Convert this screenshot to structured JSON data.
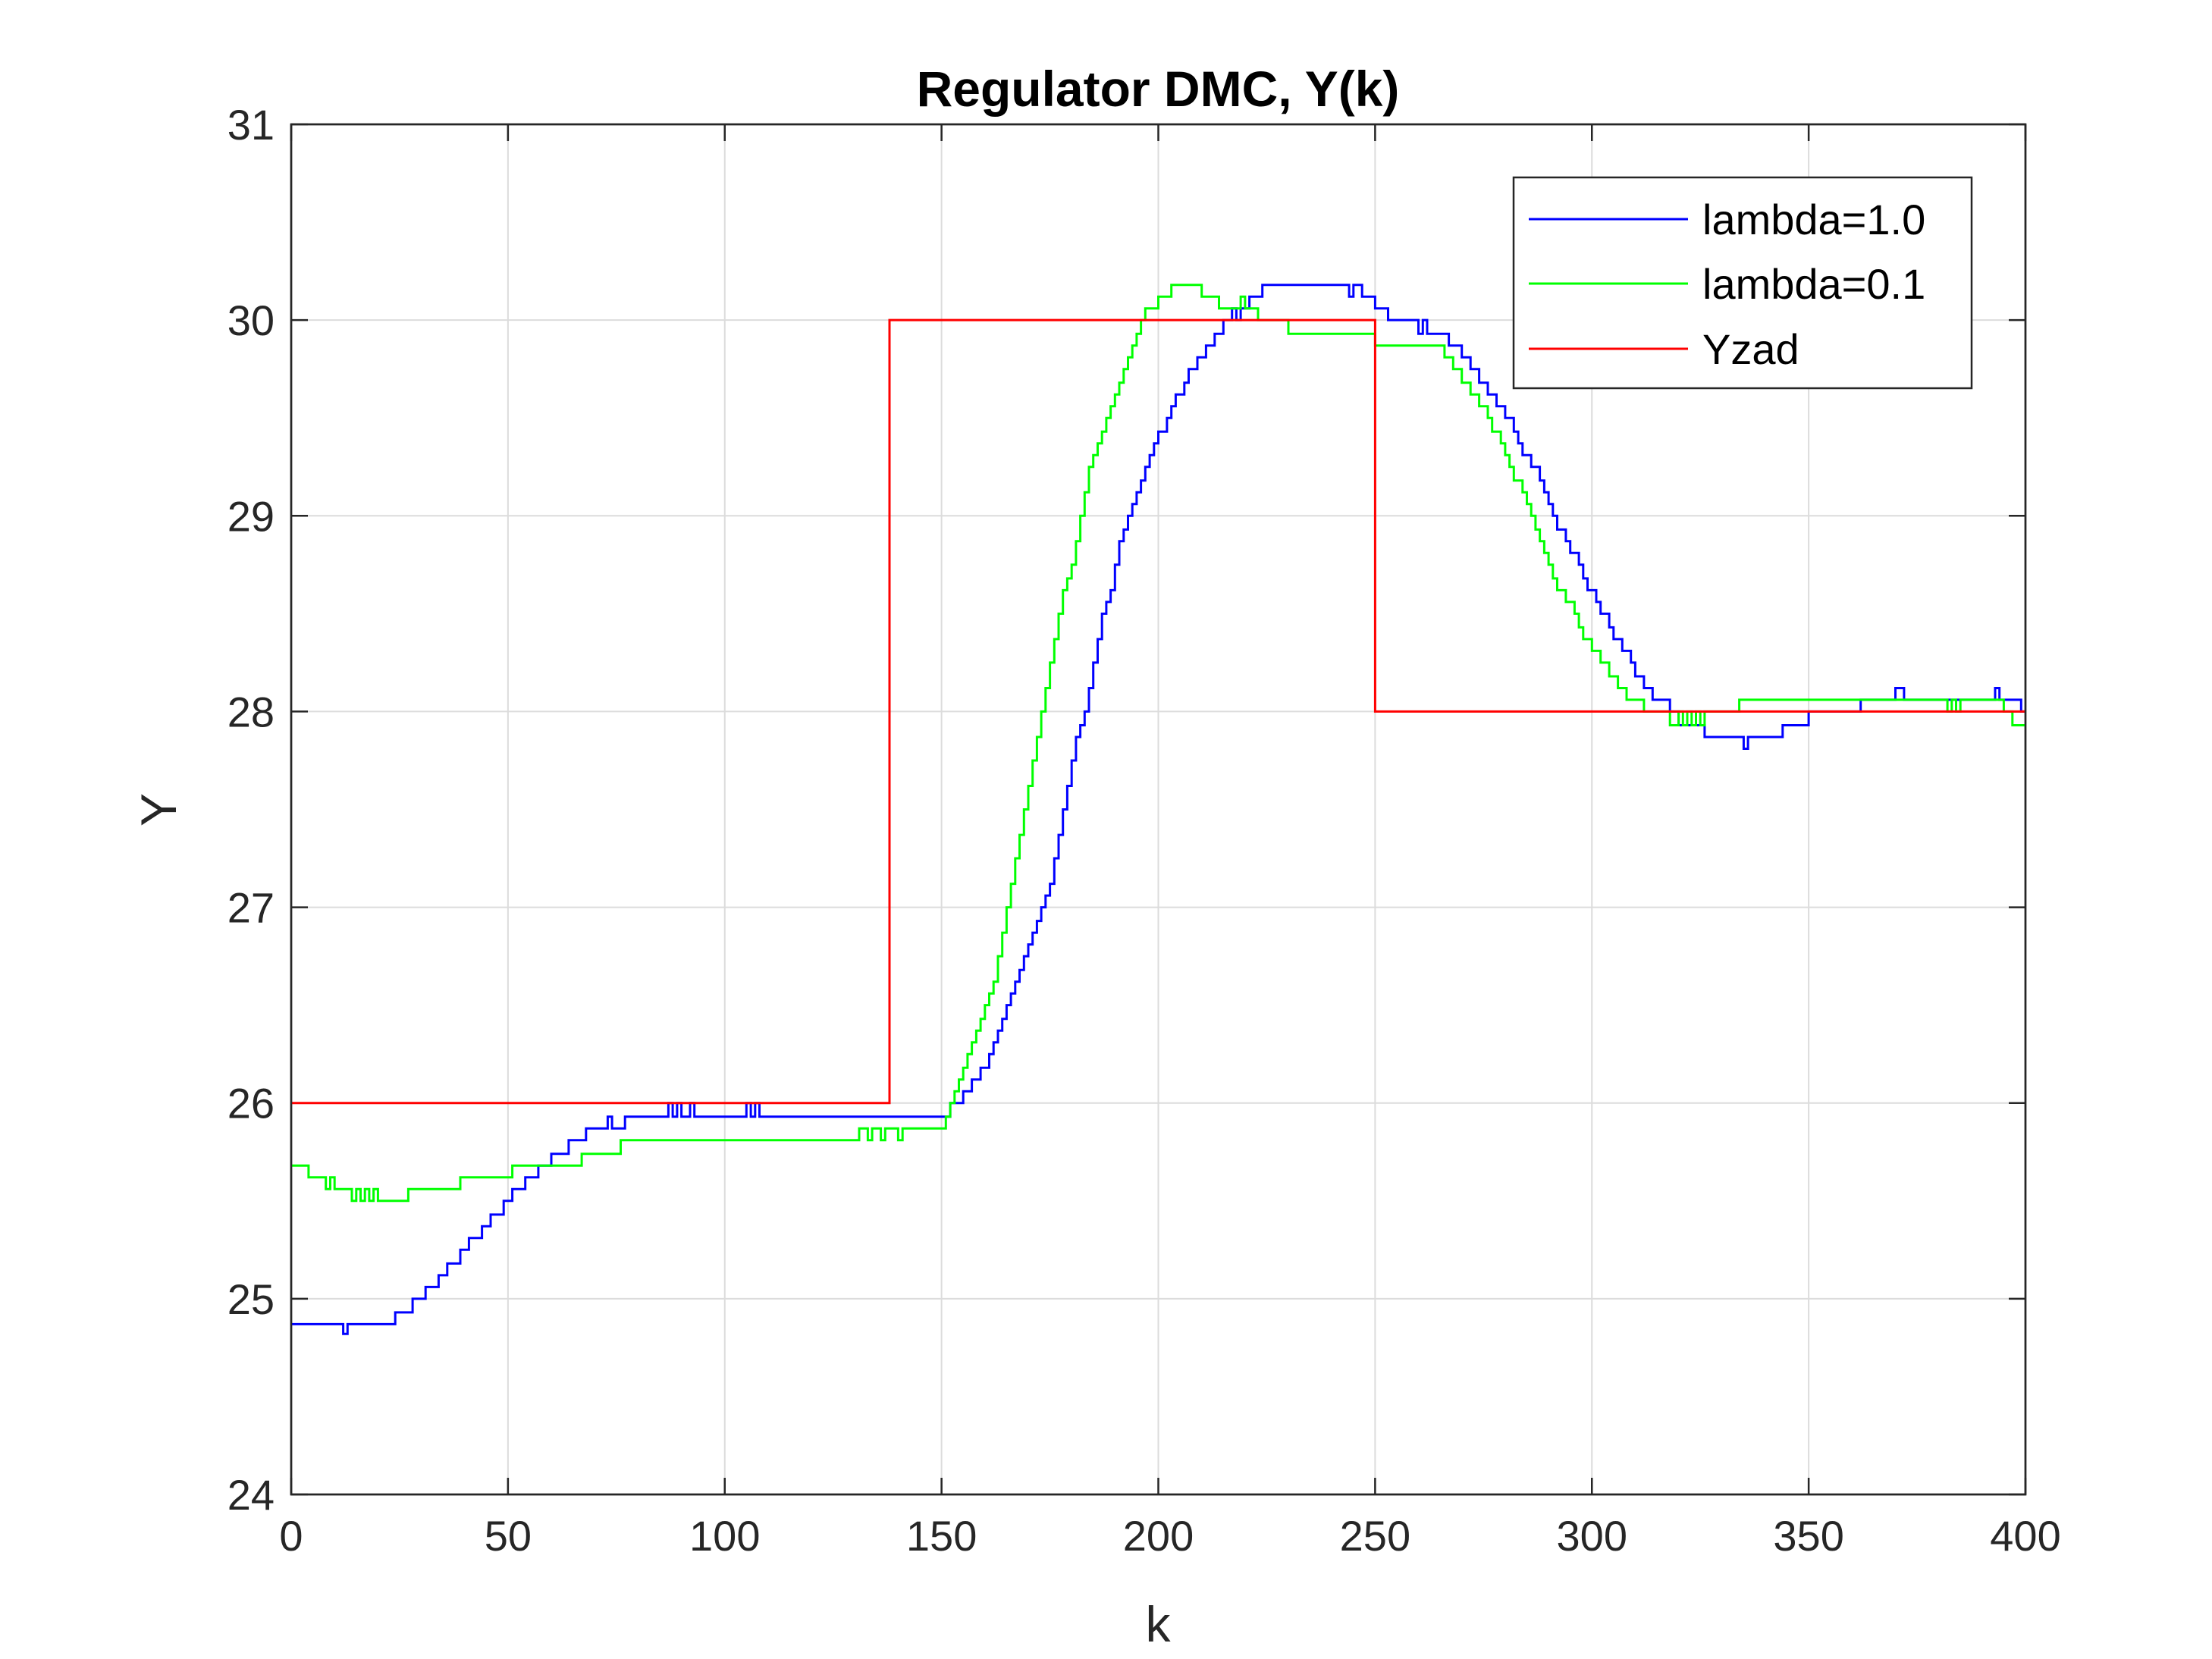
{
  "chart_data": {
    "type": "line",
    "title": "Regulator DMC, Y(k)",
    "xlabel": "k",
    "ylabel": "Y",
    "xlim": [
      0,
      400
    ],
    "ylim": [
      24,
      31
    ],
    "xticks": [
      0,
      50,
      100,
      150,
      200,
      250,
      300,
      350,
      400
    ],
    "yticks": [
      24,
      25,
      26,
      27,
      28,
      29,
      30,
      31
    ],
    "grid": true,
    "legend": "top-right",
    "series": [
      {
        "name": "lambda=1.0",
        "color": "#0000ff",
        "step": true,
        "points": [
          [
            0,
            24.87
          ],
          [
            12,
            24.82
          ],
          [
            13,
            24.87
          ],
          [
            24,
            24.93
          ],
          [
            28,
            25.0
          ],
          [
            31,
            25.06
          ],
          [
            34,
            25.12
          ],
          [
            36,
            25.18
          ],
          [
            39,
            25.25
          ],
          [
            41,
            25.31
          ],
          [
            44,
            25.37
          ],
          [
            46,
            25.43
          ],
          [
            49,
            25.5
          ],
          [
            51,
            25.56
          ],
          [
            54,
            25.62
          ],
          [
            57,
            25.68
          ],
          [
            60,
            25.74
          ],
          [
            64,
            25.81
          ],
          [
            68,
            25.87
          ],
          [
            73,
            25.93
          ],
          [
            74,
            25.87
          ],
          [
            77,
            25.93
          ],
          [
            87,
            26.0
          ],
          [
            88,
            25.93
          ],
          [
            89,
            26.0
          ],
          [
            90,
            25.93
          ],
          [
            92,
            26.0
          ],
          [
            93,
            25.93
          ],
          [
            105,
            26.0
          ],
          [
            106,
            25.93
          ],
          [
            107,
            26.0
          ],
          [
            108,
            25.93
          ],
          [
            152,
            26.0
          ],
          [
            155,
            26.06
          ],
          [
            157,
            26.12
          ],
          [
            159,
            26.18
          ],
          [
            161,
            26.25
          ],
          [
            162,
            26.31
          ],
          [
            163,
            26.37
          ],
          [
            164,
            26.43
          ],
          [
            165,
            26.5
          ],
          [
            166,
            26.56
          ],
          [
            167,
            26.62
          ],
          [
            168,
            26.68
          ],
          [
            169,
            26.75
          ],
          [
            170,
            26.81
          ],
          [
            171,
            26.87
          ],
          [
            172,
            26.93
          ],
          [
            173,
            27.0
          ],
          [
            174,
            27.06
          ],
          [
            175,
            27.12
          ],
          [
            176,
            27.25
          ],
          [
            177,
            27.37
          ],
          [
            178,
            27.5
          ],
          [
            179,
            27.62
          ],
          [
            180,
            27.75
          ],
          [
            181,
            27.87
          ],
          [
            182,
            27.93
          ],
          [
            183,
            28.0
          ],
          [
            184,
            28.12
          ],
          [
            185,
            28.25
          ],
          [
            186,
            28.37
          ],
          [
            187,
            28.5
          ],
          [
            188,
            28.56
          ],
          [
            189,
            28.62
          ],
          [
            190,
            28.75
          ],
          [
            191,
            28.87
          ],
          [
            192,
            28.93
          ],
          [
            193,
            29.0
          ],
          [
            194,
            29.06
          ],
          [
            195,
            29.12
          ],
          [
            196,
            29.18
          ],
          [
            197,
            29.25
          ],
          [
            198,
            29.31
          ],
          [
            199,
            29.37
          ],
          [
            200,
            29.43
          ],
          [
            202,
            29.5
          ],
          [
            203,
            29.56
          ],
          [
            204,
            29.62
          ],
          [
            206,
            29.68
          ],
          [
            207,
            29.75
          ],
          [
            209,
            29.81
          ],
          [
            211,
            29.87
          ],
          [
            213,
            29.93
          ],
          [
            215,
            30.0
          ],
          [
            217,
            30.06
          ],
          [
            218,
            30.0
          ],
          [
            219,
            30.06
          ],
          [
            221,
            30.12
          ],
          [
            224,
            30.18
          ],
          [
            244,
            30.12
          ],
          [
            245,
            30.18
          ],
          [
            247,
            30.12
          ],
          [
            250,
            30.06
          ],
          [
            253,
            30.0
          ],
          [
            260,
            29.93
          ],
          [
            261,
            30.0
          ],
          [
            262,
            29.93
          ],
          [
            267,
            29.87
          ],
          [
            270,
            29.81
          ],
          [
            272,
            29.75
          ],
          [
            274,
            29.68
          ],
          [
            276,
            29.62
          ],
          [
            278,
            29.56
          ],
          [
            280,
            29.5
          ],
          [
            282,
            29.43
          ],
          [
            283,
            29.37
          ],
          [
            284,
            29.31
          ],
          [
            286,
            29.25
          ],
          [
            288,
            29.18
          ],
          [
            289,
            29.12
          ],
          [
            290,
            29.06
          ],
          [
            291,
            29.0
          ],
          [
            292,
            28.93
          ],
          [
            294,
            28.87
          ],
          [
            295,
            28.81
          ],
          [
            297,
            28.75
          ],
          [
            298,
            28.68
          ],
          [
            299,
            28.62
          ],
          [
            301,
            28.56
          ],
          [
            302,
            28.5
          ],
          [
            304,
            28.43
          ],
          [
            305,
            28.37
          ],
          [
            307,
            28.31
          ],
          [
            309,
            28.25
          ],
          [
            310,
            28.18
          ],
          [
            312,
            28.12
          ],
          [
            314,
            28.06
          ],
          [
            318,
            28.0
          ],
          [
            320,
            27.93
          ],
          [
            326,
            27.87
          ],
          [
            335,
            27.81
          ],
          [
            336,
            27.87
          ],
          [
            344,
            27.93
          ],
          [
            350,
            28.0
          ],
          [
            362,
            28.06
          ],
          [
            370,
            28.12
          ],
          [
            372,
            28.06
          ],
          [
            386,
            28.06
          ],
          [
            393,
            28.12
          ],
          [
            394,
            28.06
          ],
          [
            399,
            28.0
          ]
        ]
      },
      {
        "name": "lambda=0.1",
        "color": "#00ff00",
        "step": true,
        "points": [
          [
            0,
            25.68
          ],
          [
            4,
            25.62
          ],
          [
            8,
            25.56
          ],
          [
            9,
            25.62
          ],
          [
            10,
            25.56
          ],
          [
            14,
            25.5
          ],
          [
            15,
            25.56
          ],
          [
            16,
            25.5
          ],
          [
            17,
            25.56
          ],
          [
            18,
            25.5
          ],
          [
            19,
            25.56
          ],
          [
            20,
            25.5
          ],
          [
            27,
            25.56
          ],
          [
            39,
            25.62
          ],
          [
            51,
            25.68
          ],
          [
            67,
            25.74
          ],
          [
            76,
            25.81
          ],
          [
            131,
            25.87
          ],
          [
            133,
            25.81
          ],
          [
            134,
            25.87
          ],
          [
            136,
            25.81
          ],
          [
            137,
            25.87
          ],
          [
            140,
            25.81
          ],
          [
            141,
            25.87
          ],
          [
            151,
            25.93
          ],
          [
            152,
            26.0
          ],
          [
            153,
            26.06
          ],
          [
            154,
            26.12
          ],
          [
            155,
            26.18
          ],
          [
            156,
            26.25
          ],
          [
            157,
            26.31
          ],
          [
            158,
            26.37
          ],
          [
            159,
            26.43
          ],
          [
            160,
            26.5
          ],
          [
            161,
            26.56
          ],
          [
            162,
            26.62
          ],
          [
            163,
            26.75
          ],
          [
            164,
            26.87
          ],
          [
            165,
            27.0
          ],
          [
            166,
            27.12
          ],
          [
            167,
            27.25
          ],
          [
            168,
            27.37
          ],
          [
            169,
            27.5
          ],
          [
            170,
            27.62
          ],
          [
            171,
            27.75
          ],
          [
            172,
            27.87
          ],
          [
            173,
            28.0
          ],
          [
            174,
            28.12
          ],
          [
            175,
            28.25
          ],
          [
            176,
            28.37
          ],
          [
            177,
            28.5
          ],
          [
            178,
            28.62
          ],
          [
            179,
            28.68
          ],
          [
            180,
            28.75
          ],
          [
            181,
            28.87
          ],
          [
            182,
            29.0
          ],
          [
            183,
            29.12
          ],
          [
            184,
            29.25
          ],
          [
            185,
            29.31
          ],
          [
            186,
            29.37
          ],
          [
            187,
            29.43
          ],
          [
            188,
            29.5
          ],
          [
            189,
            29.56
          ],
          [
            190,
            29.62
          ],
          [
            191,
            29.68
          ],
          [
            192,
            29.75
          ],
          [
            193,
            29.81
          ],
          [
            194,
            29.87
          ],
          [
            195,
            29.93
          ],
          [
            196,
            30.0
          ],
          [
            197,
            30.06
          ],
          [
            200,
            30.12
          ],
          [
            203,
            30.18
          ],
          [
            210,
            30.12
          ],
          [
            214,
            30.06
          ],
          [
            219,
            30.12
          ],
          [
            220,
            30.06
          ],
          [
            223,
            30.0
          ],
          [
            230,
            29.93
          ],
          [
            250,
            29.87
          ],
          [
            266,
            29.81
          ],
          [
            268,
            29.75
          ],
          [
            270,
            29.68
          ],
          [
            272,
            29.62
          ],
          [
            274,
            29.56
          ],
          [
            276,
            29.5
          ],
          [
            277,
            29.43
          ],
          [
            279,
            29.37
          ],
          [
            280,
            29.31
          ],
          [
            281,
            29.25
          ],
          [
            282,
            29.18
          ],
          [
            284,
            29.12
          ],
          [
            285,
            29.06
          ],
          [
            286,
            29.0
          ],
          [
            287,
            28.93
          ],
          [
            288,
            28.87
          ],
          [
            289,
            28.81
          ],
          [
            290,
            28.75
          ],
          [
            291,
            28.68
          ],
          [
            292,
            28.62
          ],
          [
            294,
            28.56
          ],
          [
            296,
            28.5
          ],
          [
            297,
            28.43
          ],
          [
            298,
            28.37
          ],
          [
            300,
            28.31
          ],
          [
            302,
            28.25
          ],
          [
            304,
            28.18
          ],
          [
            306,
            28.12
          ],
          [
            308,
            28.06
          ],
          [
            312,
            28.0
          ],
          [
            318,
            27.93
          ],
          [
            320,
            28.0
          ],
          [
            321,
            27.93
          ],
          [
            322,
            28.0
          ],
          [
            323,
            27.93
          ],
          [
            324,
            28.0
          ],
          [
            325,
            27.93
          ],
          [
            326,
            28.0
          ],
          [
            334,
            28.06
          ],
          [
            382,
            28.0
          ],
          [
            383,
            28.06
          ],
          [
            384,
            28.0
          ],
          [
            385,
            28.06
          ],
          [
            395,
            28.0
          ],
          [
            397,
            27.93
          ],
          [
            400,
            27.93
          ]
        ]
      },
      {
        "name": "Yzad",
        "color": "#ff0000",
        "step": true,
        "points": [
          [
            0,
            26.0
          ],
          [
            138,
            30.0
          ],
          [
            250,
            28.0
          ],
          [
            400,
            28.0
          ]
        ]
      }
    ]
  }
}
